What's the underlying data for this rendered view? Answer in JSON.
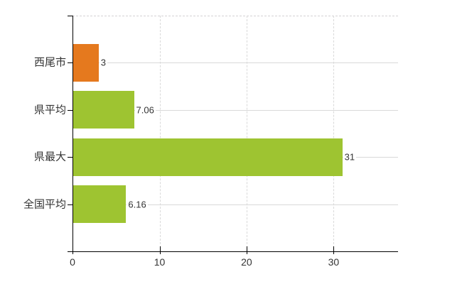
{
  "chart_data": {
    "type": "bar",
    "orientation": "horizontal",
    "title": "",
    "xlabel": "",
    "ylabel": "",
    "categories": [
      "西尾市",
      "県平均",
      "県最大",
      "全国平均"
    ],
    "values": [
      3,
      7.06,
      31,
      6.16
    ],
    "value_labels": [
      "3",
      "7.06",
      "31",
      "6.16"
    ],
    "bar_colors": [
      "#e5791e",
      "#9ec431",
      "#9ec431",
      "#9ec431"
    ],
    "xlim": [
      0,
      37.4
    ],
    "x_ticks": [
      0,
      10,
      20,
      30
    ],
    "x_tick_labels": [
      "0",
      "10",
      "20",
      "30"
    ],
    "grid": true,
    "legend": false,
    "colors": {
      "highlight_bar": "#e5791e",
      "default_bar": "#9ec431",
      "gridline": "#d9d9d9",
      "dashed_border": "#d5d2d5",
      "axis": "#000000",
      "text": "#333333",
      "background": "#ffffff"
    }
  }
}
